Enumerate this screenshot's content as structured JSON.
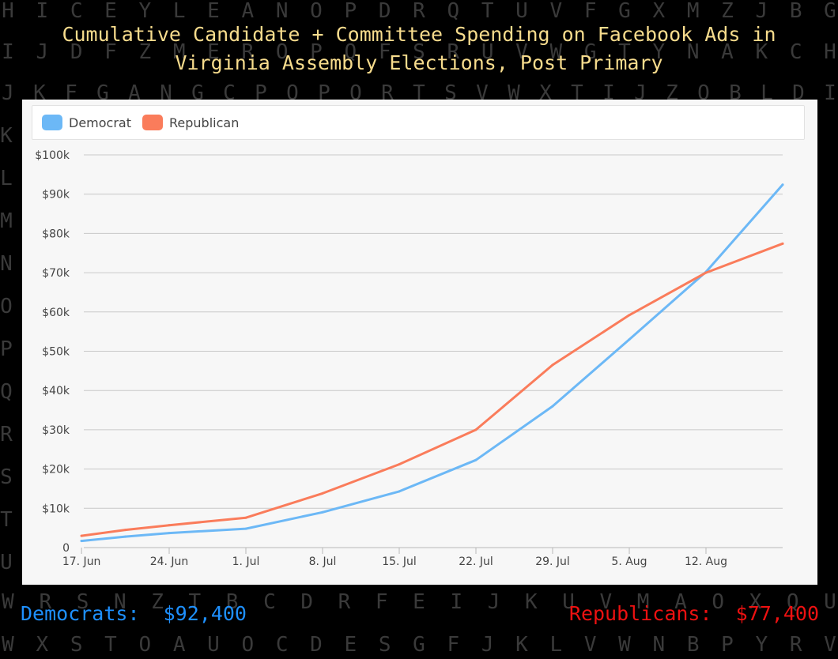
{
  "title_line1": "Cumulative Candidate + Committee Spending on Facebook Ads in",
  "title_line2": "Virginia Assembly Elections, Post Primary",
  "background_letter_rows": [
    "HICEYLEANOPDRQTUVFGXMZJBG",
    "IJDFZMEROPQFSRUVWGTYNAKCH",
    "JKFGANGCPOPQRTSVWXTIJZOBLDI",
    "WRSNZTBCDRFEIJKUVMAOXQU",
    "WXSTOAUOCDESGFJKLVWNBPYRV"
  ],
  "background_letter_column": "KLMNOPQRSTU",
  "chart_data": {
    "type": "line",
    "x": [
      "17. Jun",
      "21. Jun",
      "24. Jun",
      "1. Jul",
      "8. Jul",
      "15. Jul",
      "22. Jul",
      "29. Jul",
      "5. Aug",
      "12. Aug",
      "19. Aug"
    ],
    "x_days_offset": [
      -1,
      3,
      7,
      14,
      21,
      28,
      35,
      42,
      49,
      56,
      63
    ],
    "xtick_labels": [
      "17. Jun",
      "24. Jun",
      "1. Jul",
      "8. Jul",
      "15. Jul",
      "22. Jul",
      "29. Jul",
      "5. Aug",
      "12. Aug"
    ],
    "series": [
      {
        "name": "Democrat",
        "color": "#6cb8f6",
        "values": [
          1700,
          2800,
          3700,
          4800,
          9000,
          14300,
          22300,
          36000,
          53000,
          70200,
          92400
        ]
      },
      {
        "name": "Republican",
        "color": "#fa7c5b",
        "values": [
          3000,
          4500,
          5700,
          7600,
          13800,
          21200,
          30000,
          46500,
          59200,
          70000,
          77400
        ]
      }
    ],
    "ylim": [
      0,
      100000
    ],
    "ytick_values": [
      0,
      10000,
      20000,
      30000,
      40000,
      50000,
      60000,
      70000,
      80000,
      90000,
      100000
    ],
    "ytick_labels": [
      "0",
      "$10k",
      "$20k",
      "$30k",
      "$40k",
      "$50k",
      "$60k",
      "$70k",
      "$80k",
      "$90k",
      "$100k"
    ],
    "grid": true,
    "legend_position": "top-left"
  },
  "totals": {
    "democrats_label": "Democrats:",
    "democrats_value": "$92,400",
    "republicans_label": "Republicans:",
    "republicans_value": "$77,400"
  }
}
